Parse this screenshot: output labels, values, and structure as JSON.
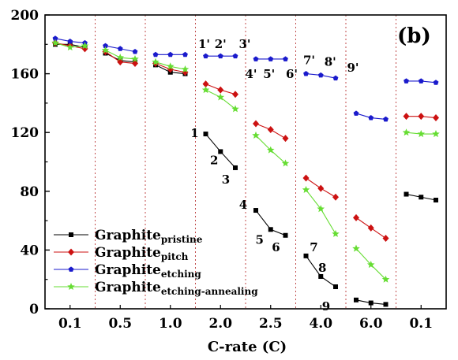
{
  "chart_data": {
    "type": "line",
    "panel_label": "(b)",
    "xlabel": "C-rate (C)",
    "ylabel": "",
    "ylim": [
      0,
      200
    ],
    "yticks": [
      0,
      40,
      80,
      120,
      160,
      200
    ],
    "categories": [
      "0.1",
      "0.5",
      "1.0",
      "2.0",
      "2.5",
      "4.0",
      "6.0",
      "0.1"
    ],
    "points_per_segment": 3,
    "grid": false,
    "segment_dividers": "dotted",
    "legend_position": "bottom-left",
    "series": [
      {
        "name_main": "Graphite",
        "name_sub": "pristine",
        "color": "#000000",
        "marker": "square",
        "values": [
          [
            180,
            180,
            178
          ],
          [
            174,
            169,
            168
          ],
          [
            166,
            161,
            160
          ],
          [
            119,
            107,
            96
          ],
          [
            67,
            54,
            50
          ],
          [
            36,
            22,
            15
          ],
          [
            6,
            4,
            3
          ],
          [
            78,
            76,
            74
          ]
        ]
      },
      {
        "name_main": "Graphite",
        "name_sub": "pitch",
        "color": "#cc1111",
        "marker": "diamond",
        "values": [
          [
            181,
            179,
            177
          ],
          [
            175,
            168,
            167
          ],
          [
            167,
            163,
            161
          ],
          [
            153,
            149,
            146
          ],
          [
            126,
            122,
            116
          ],
          [
            89,
            82,
            76
          ],
          [
            62,
            55,
            48
          ],
          [
            131,
            131,
            130
          ]
        ]
      },
      {
        "name_main": "Graphite",
        "name_sub": "etching",
        "color": "#1a1acc",
        "marker": "pentagon",
        "values": [
          [
            184,
            182,
            181
          ],
          [
            179,
            177,
            175
          ],
          [
            173,
            173,
            173
          ],
          [
            172,
            172,
            172
          ],
          [
            170,
            170,
            170
          ],
          [
            160,
            159,
            157
          ],
          [
            133,
            130,
            129
          ],
          [
            155,
            155,
            154
          ]
        ]
      },
      {
        "name_main": "Graphite",
        "name_sub": "etching-annealing",
        "color": "#66dd33",
        "marker": "star",
        "values": [
          [
            181,
            178,
            179
          ],
          [
            176,
            171,
            170
          ],
          [
            168,
            165,
            163
          ],
          [
            149,
            144,
            136
          ],
          [
            118,
            108,
            99
          ],
          [
            81,
            68,
            51
          ],
          [
            41,
            30,
            20
          ],
          [
            120,
            119,
            119
          ]
        ]
      }
    ],
    "annotations": [
      {
        "text": "1'",
        "series": 2,
        "seg": 3,
        "idx": 0,
        "dx": -2,
        "dy": -10
      },
      {
        "text": "2'",
        "series": 2,
        "seg": 3,
        "idx": 1,
        "dx": 0,
        "dy": -10
      },
      {
        "text": "3'",
        "series": 2,
        "seg": 3,
        "idx": 2,
        "dx": 12,
        "dy": -10
      },
      {
        "text": "4'",
        "series": 2,
        "seg": 4,
        "idx": 0,
        "dx": -6,
        "dy": 24
      },
      {
        "text": "5'",
        "series": 2,
        "seg": 4,
        "idx": 1,
        "dx": -2,
        "dy": 24
      },
      {
        "text": "6'",
        "series": 2,
        "seg": 4,
        "idx": 2,
        "dx": 8,
        "dy": 24
      },
      {
        "text": "7'",
        "series": 2,
        "seg": 5,
        "idx": 0,
        "dx": 4,
        "dy": -12
      },
      {
        "text": "8'",
        "series": 2,
        "seg": 5,
        "idx": 1,
        "dx": 12,
        "dy": -12
      },
      {
        "text": "9'",
        "series": 2,
        "seg": 5,
        "idx": 2,
        "dx": 22,
        "dy": -8
      },
      {
        "text": "1",
        "series": 0,
        "seg": 3,
        "idx": 0,
        "dx": -14,
        "dy": 4
      },
      {
        "text": "2",
        "series": 0,
        "seg": 3,
        "idx": 1,
        "dx": -8,
        "dy": 16
      },
      {
        "text": "3",
        "series": 0,
        "seg": 3,
        "idx": 2,
        "dx": -12,
        "dy": 20
      },
      {
        "text": "4",
        "series": 0,
        "seg": 4,
        "idx": 0,
        "dx": -16,
        "dy": -2
      },
      {
        "text": "5",
        "series": 0,
        "seg": 4,
        "idx": 1,
        "dx": -14,
        "dy": 18
      },
      {
        "text": "6",
        "series": 0,
        "seg": 4,
        "idx": 2,
        "dx": -12,
        "dy": 20
      },
      {
        "text": "7",
        "series": 0,
        "seg": 5,
        "idx": 0,
        "dx": 10,
        "dy": -6
      },
      {
        "text": "8",
        "series": 0,
        "seg": 5,
        "idx": 1,
        "dx": 2,
        "dy": -6
      },
      {
        "text": "9",
        "series": 0,
        "seg": 5,
        "idx": 2,
        "dx": -12,
        "dy": 30
      }
    ]
  }
}
